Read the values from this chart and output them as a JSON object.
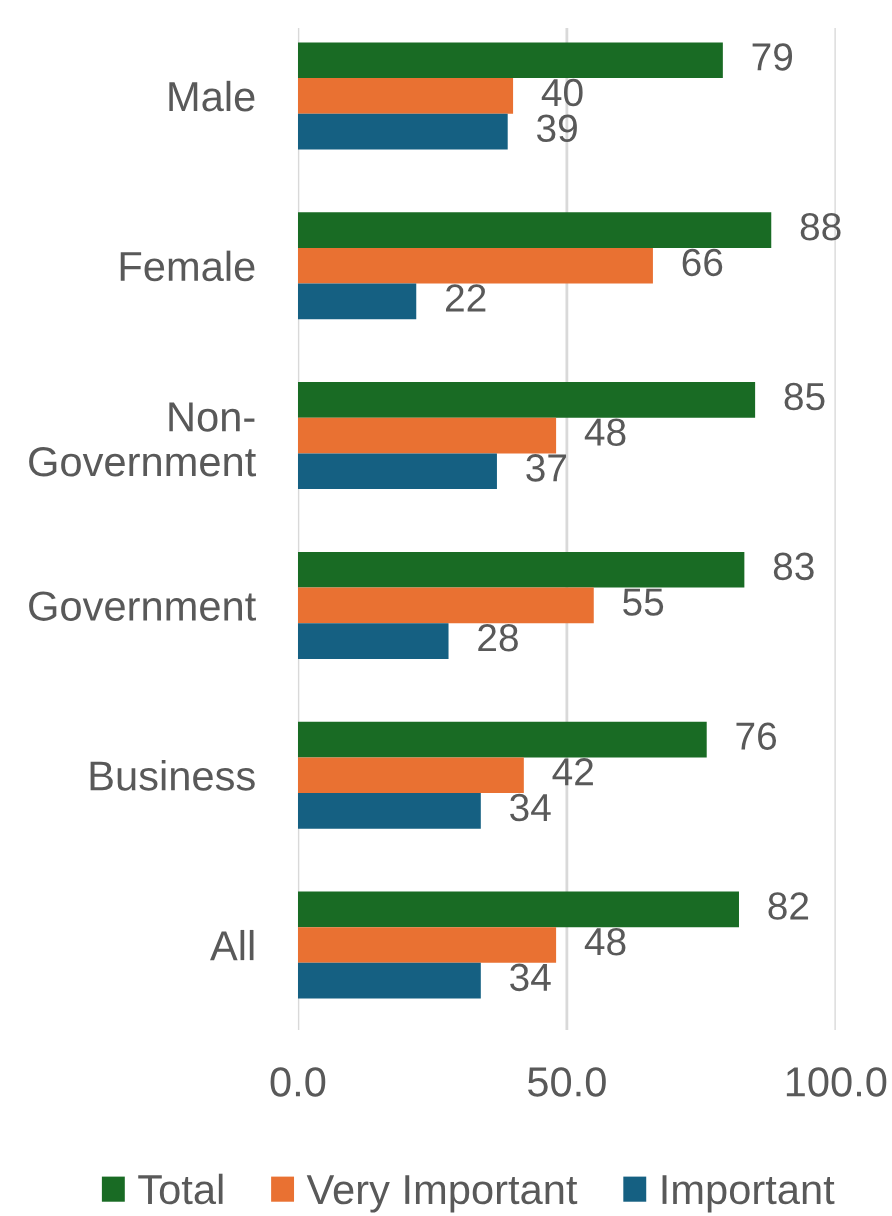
{
  "chart_data": {
    "type": "bar",
    "orientation": "horizontal",
    "categories": [
      "Male",
      "Female",
      "Non-Government",
      "Government",
      "Business",
      "All"
    ],
    "series": [
      {
        "name": "Total",
        "color": "#196b24",
        "values": [
          79,
          88,
          85,
          83,
          76,
          82
        ]
      },
      {
        "name": "Very Important",
        "color": "#e97132",
        "values": [
          40,
          66,
          48,
          55,
          42,
          48
        ]
      },
      {
        "name": "Important",
        "color": "#156082",
        "values": [
          39,
          22,
          37,
          28,
          34,
          34
        ]
      }
    ],
    "xlim": [
      0,
      100
    ],
    "xticks": [
      {
        "value": 0,
        "label": "0.0"
      },
      {
        "value": 50,
        "label": "50.0"
      },
      {
        "value": 100,
        "label": "100.0"
      }
    ],
    "grid": "x",
    "legend": "bottom",
    "data_labels": true
  }
}
